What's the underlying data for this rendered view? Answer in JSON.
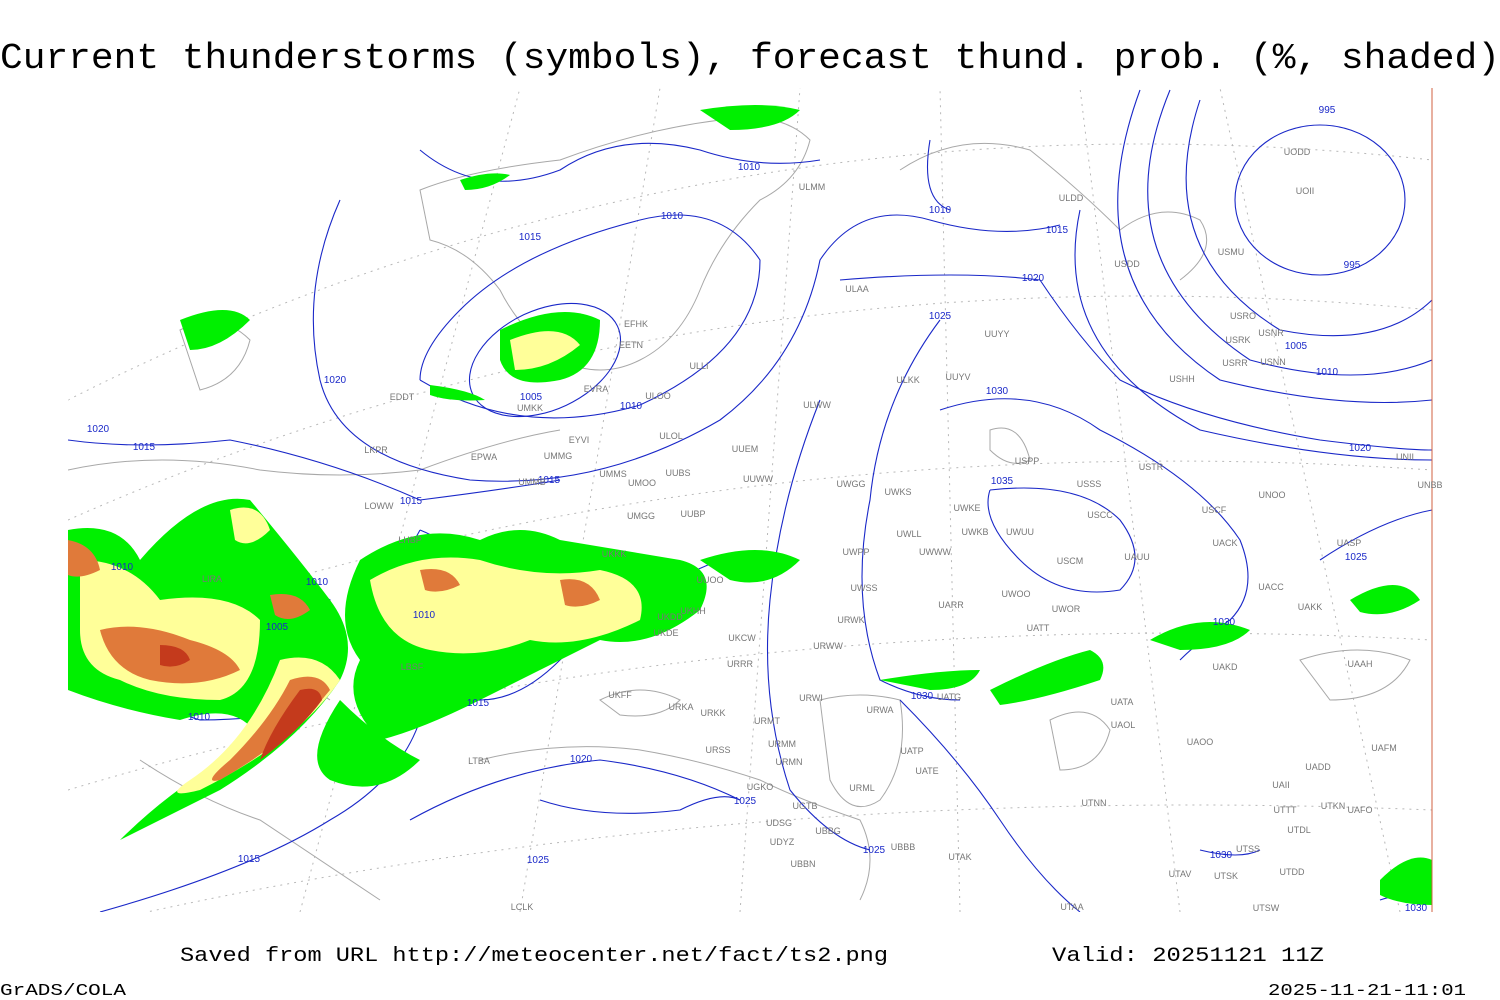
{
  "title": "Current thunderstorms (symbols), forecast thund. prob. (%, shaded)",
  "isobar_labels": [
    995,
    995,
    1010,
    1010,
    1010,
    1015,
    1015,
    1020,
    1025,
    1005,
    1010,
    1020,
    1005,
    1010,
    1030,
    1020,
    1015,
    1020,
    1015,
    1035,
    1015,
    1025,
    1010,
    1010,
    1030,
    1005,
    1010,
    1030,
    1015,
    1010,
    1020,
    1025,
    1030,
    1025,
    1025,
    1015,
    1030
  ],
  "stations": [
    "ULMM",
    "ULDD",
    "USDD",
    "UOII",
    "UODD",
    "USMU",
    "ULAA",
    "EFHK",
    "EETN",
    "USRO",
    "USNR",
    "USRK",
    "USRR",
    "USNN",
    "UUYY",
    "ULLI",
    "USHH",
    "ULKK",
    "UUYV",
    "EVRA",
    "ULOO",
    "EDDT",
    "UMKK",
    "ULWW",
    "EYVI",
    "ULOL",
    "UUEM",
    "EPWA",
    "UMMG",
    "LKPR",
    "USPP",
    "USTR",
    "UNII",
    "UMMS",
    "UUBS",
    "UUWW",
    "UMOO",
    "UMMB",
    "UWGG",
    "UWKS",
    "USSS",
    "UNBB",
    "UNOO",
    "LOWW",
    "UWKE",
    "USCC",
    "USCF",
    "UMGG",
    "UUBP",
    "UWKB",
    "UWUU",
    "UWLL",
    "UACK",
    "UASP",
    "LHBP",
    "UKKK",
    "UWPP",
    "UWWW",
    "USCM",
    "UAUU",
    "LIRA",
    "UUOO",
    "UWSS",
    "UACC",
    "UKHH",
    "UKDD",
    "UWOO",
    "UWOR",
    "UARR",
    "UAKK",
    "UKDE",
    "URWK",
    "UATT",
    "UKCW",
    "URWW",
    "URRR",
    "UAKD",
    "UAAH",
    "LBSF",
    "UKFF",
    "UATG",
    "UATA",
    "URKA",
    "URKK",
    "URWI",
    "URWA",
    "URMT",
    "UAOL",
    "UAOO",
    "UAFM",
    "URSS",
    "URMM",
    "UATP",
    "URMN",
    "UATE",
    "LTBA",
    "UADD",
    "UGKO",
    "URML",
    "UGTB",
    "UAII",
    "UTNN",
    "UTTT",
    "UTKN",
    "UAFO",
    "UDSG",
    "UBBG",
    "UTDL",
    "UDYZ",
    "UBBB",
    "UTAK",
    "UBBN",
    "UTSS",
    "UTAV",
    "UTSK",
    "UTDD",
    "UTAA",
    "UTSW",
    "LCLK"
  ],
  "footer": {
    "source": "Saved from URL http://meteocenter.net/fact/ts2.png",
    "valid": "Valid: 20251121 11Z",
    "software": "GrADS/COLA",
    "timestamp": "2025-11-21-11:01"
  }
}
